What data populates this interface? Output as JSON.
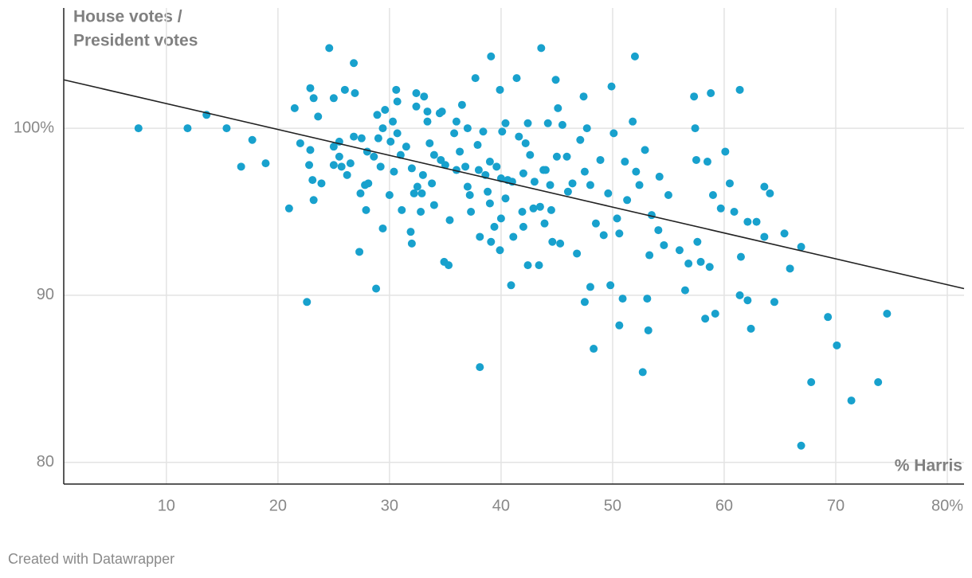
{
  "chart_data": {
    "type": "scatter",
    "y_label": [
      "House votes /",
      "President votes"
    ],
    "x_label": "% Harris",
    "footer": "Created with Datawrapper",
    "color": "#18a1cd",
    "trend_color": "#222222",
    "grid": true,
    "xlim": [
      0.8,
      81.5
    ],
    "ylim": [
      78.7,
      107.2
    ],
    "xticks": [
      10,
      20,
      30,
      40,
      50,
      60,
      70,
      {
        "value": 80,
        "label": "80%"
      }
    ],
    "yticks": [
      80,
      90,
      {
        "value": 100,
        "label": "100%"
      }
    ],
    "trendline": {
      "x": [
        0.8,
        81.5
      ],
      "y": [
        102.9,
        90.4
      ]
    },
    "x": [
      7.5,
      11.9,
      13.6,
      15.4,
      17.7,
      16.7,
      18.9,
      21,
      21.5,
      22.9,
      23.2,
      22,
      22.9,
      22.8,
      23.1,
      23.2,
      22.6,
      23.6,
      23.9,
      24.6,
      25,
      25,
      25,
      25.5,
      25.7,
      26,
      26.2,
      26.8,
      26.9,
      26.8,
      27.3,
      27.4,
      27.8,
      27.9,
      28.1,
      28.6,
      28.8,
      28.9,
      29.2,
      29.4,
      29.4,
      29.6,
      30.1,
      30.3,
      30.6,
      30.7,
      30.4,
      30.7,
      31.1,
      31.5,
      31.9,
      32,
      32,
      32.2,
      32.4,
      32.4,
      32.8,
      32.9,
      33.1,
      33.4,
      33.4,
      33.6,
      33.8,
      34,
      34.5,
      34.6,
      34.7,
      34.9,
      35.3,
      35.4,
      35.8,
      36,
      36.3,
      36.5,
      36.8,
      37,
      37.2,
      37.3,
      37.7,
      37.9,
      38.1,
      38.1,
      38.4,
      38.6,
      38.8,
      39.1,
      39.1,
      39.4,
      39.6,
      39.9,
      39.9,
      40.1,
      40.4,
      40.4,
      40.6,
      40.9,
      41.1,
      41.4,
      41.6,
      41.9,
      42.2,
      42.4,
      42.4,
      42.6,
      42.9,
      43.4,
      43.6,
      43.8,
      43.9,
      44.2,
      44.4,
      44.6,
      44.9,
      45.1,
      45.3,
      45.5,
      45.9,
      46.4,
      46.8,
      47.1,
      47.4,
      47.5,
      47.7,
      48,
      48,
      48.3,
      48.5,
      48.9,
      49.2,
      49.6,
      49.8,
      49.9,
      50.1,
      50.4,
      50.6,
      50.6,
      50.9,
      51.1,
      51.3,
      51.8,
      52,
      52.1,
      52.4,
      52.7,
      52.9,
      53.1,
      53.2,
      53.3,
      53.5,
      54.1,
      54.2,
      54.6,
      55,
      56,
      56.5,
      56.8,
      57.3,
      57.4,
      57.5,
      57.6,
      57.9,
      58.3,
      58.5,
      58.7,
      58.8,
      59,
      59.2,
      59.7,
      60.1,
      60.5,
      60.9,
      61.4,
      61.4,
      61.5,
      62.1,
      62.1,
      62.4,
      62.9,
      63.6,
      63.6,
      64.1,
      64.5,
      65.4,
      65.9,
      66.9,
      66.9,
      67.8,
      69.3,
      70.1,
      71.4,
      73.8,
      74.6,
      36,
      37,
      38,
      39,
      40,
      41,
      42,
      43,
      44,
      45,
      33,
      34,
      35,
      31,
      29,
      28,
      27.5,
      44.5,
      46,
      47.5,
      43.5,
      39,
      42,
      40,
      30,
      32.5,
      25.5,
      26.5
    ],
    "values": [
      100,
      100,
      100.8,
      100,
      99.3,
      97.7,
      97.9,
      95.2,
      101.2,
      102.4,
      101.8,
      99.1,
      98.7,
      97.8,
      96.9,
      95.7,
      89.6,
      100.7,
      96.7,
      104.8,
      101.8,
      97.8,
      98.9,
      98.3,
      97.7,
      102.3,
      97.2,
      103.9,
      102.1,
      99.5,
      92.6,
      96.1,
      96.6,
      95.1,
      96.7,
      98.3,
      90.4,
      100.8,
      97.7,
      94,
      100,
      101.1,
      99.2,
      100.4,
      102.3,
      101.6,
      97.4,
      99.7,
      95.1,
      98.9,
      93.8,
      93.1,
      97.6,
      96.1,
      102.1,
      101.3,
      95,
      96.1,
      101.9,
      101,
      100.4,
      99.1,
      96.7,
      95.4,
      100.9,
      98.1,
      101,
      92,
      91.8,
      94.5,
      99.7,
      100.4,
      98.6,
      101.4,
      97.7,
      100,
      96,
      95,
      103,
      99,
      85.7,
      93.5,
      99.8,
      97.2,
      96.2,
      104.3,
      93.2,
      94.1,
      97.7,
      102.3,
      92.7,
      99.8,
      100.3,
      95.8,
      96.9,
      90.6,
      93.5,
      103,
      99.5,
      95,
      99.1,
      91.8,
      100.3,
      98.4,
      95.2,
      91.8,
      104.8,
      97.5,
      94.3,
      100.3,
      96.6,
      93.2,
      102.9,
      101.2,
      93.1,
      100.2,
      98.3,
      96.7,
      92.5,
      99.3,
      101.9,
      89.6,
      100,
      96.6,
      90.5,
      86.8,
      94.3,
      98.1,
      93.6,
      96.1,
      90.6,
      102.5,
      99.7,
      94.6,
      93.7,
      88.2,
      89.8,
      98,
      95.7,
      100.4,
      104.3,
      97.4,
      96.6,
      85.4,
      98.7,
      89.8,
      87.9,
      92.4,
      94.8,
      93.9,
      97.1,
      93,
      96,
      92.7,
      90.3,
      91.9,
      101.9,
      100,
      98.1,
      93.2,
      92,
      88.6,
      98,
      91.7,
      102.1,
      96,
      88.9,
      95.2,
      98.6,
      96.7,
      95,
      102.3,
      90,
      92.3,
      94.4,
      89.7,
      88,
      94.4,
      96.5,
      93.5,
      96.1,
      89.6,
      93.7,
      91.6,
      81,
      92.9,
      84.8,
      88.7,
      87,
      83.7,
      84.8,
      88.9,
      97.5,
      96.5,
      97.5,
      98,
      97,
      96.8,
      97.3,
      96.8,
      97.5,
      98.3,
      97.2,
      98.4,
      97.8,
      98.4,
      99.4,
      98.6,
      99.4,
      95.1,
      96.2,
      97.4,
      95.3,
      95.5,
      94.1,
      94.6,
      96,
      96.5,
      99.2,
      97.9
    ]
  }
}
